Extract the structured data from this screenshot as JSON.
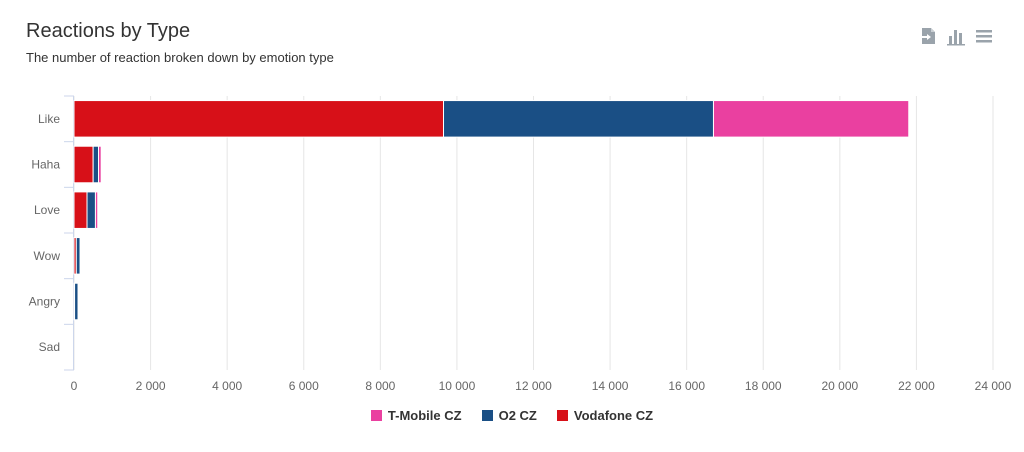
{
  "title": "Reactions by Type",
  "subtitle": "The number of reaction broken down by emotion type",
  "toolbar": {
    "icons": [
      "export-icon",
      "chart-type-icon",
      "menu-icon"
    ]
  },
  "colors": {
    "grid": "#e6e6e6",
    "axis": "#ccd6eb",
    "tick_text": "#666666",
    "icon": "#9aa3ab"
  },
  "chart_data": {
    "type": "bar",
    "orientation": "horizontal",
    "stacked": true,
    "categories": [
      "Like",
      "Haha",
      "Love",
      "Wow",
      "Angry",
      "Sad"
    ],
    "series": [
      {
        "name": "Vodafone CZ",
        "color": "#d71018",
        "values": [
          9650,
          500,
          340,
          60,
          15,
          0
        ]
      },
      {
        "name": "O2 CZ",
        "color": "#1a4f85",
        "values": [
          7050,
          140,
          220,
          100,
          90,
          0
        ]
      },
      {
        "name": "T-Mobile CZ",
        "color": "#ea40a0",
        "values": [
          5100,
          70,
          60,
          20,
          0,
          0
        ]
      }
    ],
    "stack_order": [
      "Vodafone CZ",
      "O2 CZ",
      "T-Mobile CZ"
    ],
    "legend_order": [
      "T-Mobile CZ",
      "O2 CZ",
      "Vodafone CZ"
    ],
    "xlim": [
      0,
      24000
    ],
    "xticks": [
      0,
      2000,
      4000,
      6000,
      8000,
      10000,
      12000,
      14000,
      16000,
      18000,
      20000,
      22000,
      24000
    ],
    "xtick_labels": [
      "0",
      "2 000",
      "4 000",
      "6 000",
      "8 000",
      "10 000",
      "12 000",
      "14 000",
      "16 000",
      "18 000",
      "20 000",
      "22 000",
      "24 000"
    ],
    "grid": true,
    "legend_position": "bottom-center",
    "xlabel": "",
    "ylabel": ""
  }
}
